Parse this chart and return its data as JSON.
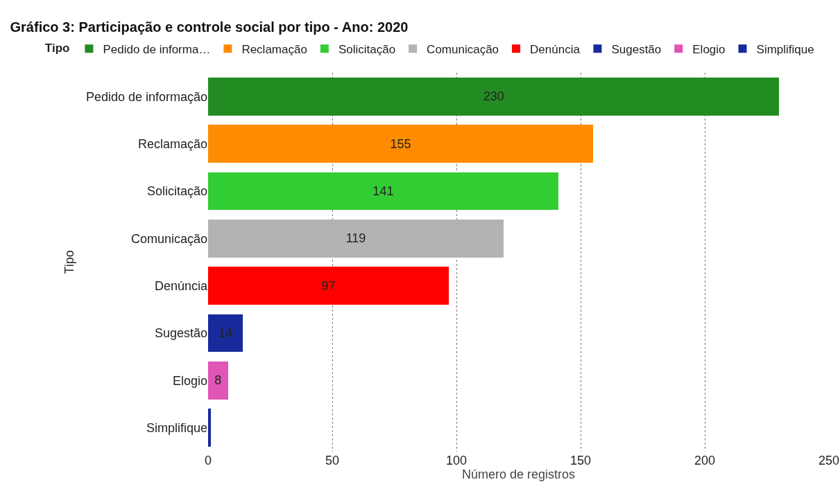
{
  "chart_data": {
    "type": "bar",
    "orientation": "horizontal",
    "stacked": true,
    "title": "Gráfico 3: Participação e controle social por tipo - Ano: 2020",
    "xlabel": "Número de registros",
    "ylabel": "Tipo",
    "legend_title": "Tipo",
    "legend": "top",
    "categories": [
      "Pedido de informação",
      "Reclamação",
      "Solicitação",
      "Comunicação",
      "Denúncia",
      "Sugestão",
      "Elogio",
      "Simplifique"
    ],
    "series": [
      {
        "name": "Pedido de informa…",
        "color": "#228b22",
        "values": [
          230,
          null,
          null,
          null,
          null,
          null,
          null,
          null
        ],
        "value_labels": [
          "230",
          null,
          null,
          null,
          null,
          null,
          null,
          null
        ]
      },
      {
        "name": "Reclamação",
        "color": "#ff8c00",
        "values": [
          null,
          155,
          null,
          null,
          null,
          null,
          null,
          null
        ],
        "value_labels": [
          null,
          "155",
          null,
          null,
          null,
          null,
          null,
          null
        ]
      },
      {
        "name": "Solicitação",
        "color": "#32cd32",
        "values": [
          null,
          null,
          141,
          null,
          null,
          null,
          null,
          null
        ],
        "value_labels": [
          null,
          null,
          "141",
          null,
          null,
          null,
          null,
          null
        ]
      },
      {
        "name": "Comunicação",
        "color": "#b3b3b3",
        "values": [
          null,
          null,
          null,
          119,
          null,
          null,
          null,
          null
        ],
        "value_labels": [
          null,
          null,
          null,
          "119",
          null,
          null,
          null,
          null
        ]
      },
      {
        "name": "Denúncia",
        "color": "#ff0000",
        "values": [
          null,
          null,
          null,
          null,
          97,
          null,
          null,
          null
        ],
        "value_labels": [
          null,
          null,
          null,
          null,
          "97",
          null,
          null,
          null
        ]
      },
      {
        "name": "Sugestão",
        "color": "#192a9c",
        "values": [
          null,
          null,
          null,
          null,
          null,
          14,
          null,
          null
        ],
        "value_labels": [
          null,
          null,
          null,
          null,
          null,
          "14",
          null,
          null
        ]
      },
      {
        "name": "Elogio",
        "color": "#e055b5",
        "values": [
          null,
          null,
          null,
          null,
          null,
          null,
          8,
          null
        ],
        "value_labels": [
          null,
          null,
          null,
          null,
          null,
          null,
          "8",
          null
        ]
      },
      {
        "name": "Simplifique",
        "color": "#192a9c",
        "values": [
          null,
          null,
          null,
          null,
          null,
          null,
          null,
          1
        ],
        "value_labels": [
          null,
          null,
          null,
          null,
          null,
          null,
          null,
          null
        ]
      }
    ],
    "xlim": [
      0,
      250
    ],
    "xticks": [
      0,
      50,
      100,
      150,
      200,
      250
    ],
    "grid": "x"
  }
}
